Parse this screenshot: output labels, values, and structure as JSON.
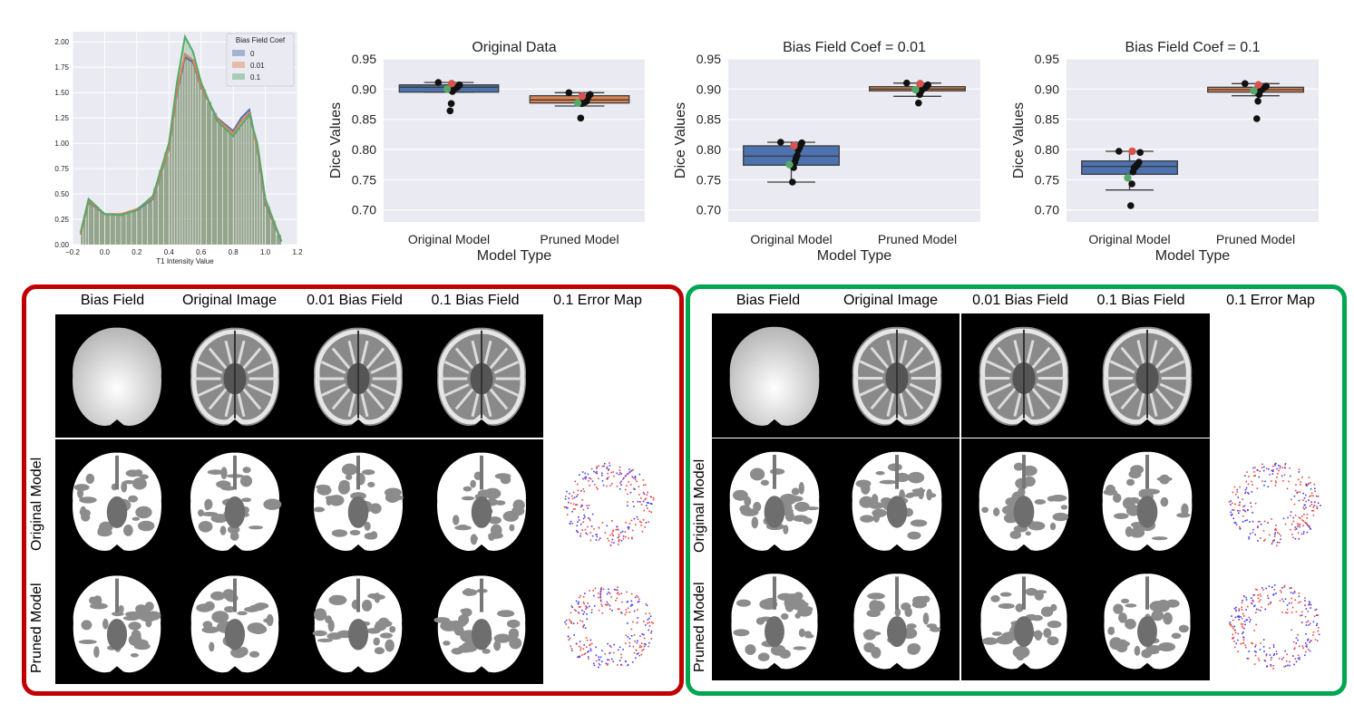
{
  "histogram": {
    "xlabel": "T1 Intensity Value",
    "legend_title": "Bias Field Coef",
    "xticks": [
      "−0.2",
      "0.0",
      "0.2",
      "0.4",
      "0.6",
      "0.8",
      "1.0",
      "1.2"
    ],
    "yticks": [
      "0.00",
      "0.25",
      "0.50",
      "0.75",
      "1.00",
      "1.25",
      "1.50",
      "1.75",
      "2.00"
    ]
  },
  "colors": {
    "c0": "#4c72b0",
    "c001": "#dd8452",
    "c01": "#55a868",
    "red_panel": "#c00000",
    "green_panel": "#00a651",
    "point_black": "#111111",
    "point_red": "#d9534f",
    "point_green": "#55a868"
  },
  "chart_data": [
    {
      "type": "histogram",
      "xlabel": "T1 Intensity Value",
      "xlim": [
        -0.2,
        1.2
      ],
      "ylim": [
        0,
        2.1
      ],
      "legend_title": "Bias Field Coef",
      "legend_position": "top-right",
      "series": [
        {
          "name": "0",
          "x": [
            -0.15,
            -0.1,
            0.0,
            0.1,
            0.2,
            0.3,
            0.4,
            0.45,
            0.5,
            0.55,
            0.6,
            0.7,
            0.8,
            0.85,
            0.9,
            0.95,
            1.0,
            1.1
          ],
          "y": [
            0.1,
            0.42,
            0.3,
            0.3,
            0.34,
            0.45,
            0.95,
            1.5,
            1.85,
            1.8,
            1.55,
            1.25,
            1.12,
            1.25,
            1.33,
            0.95,
            0.4,
            0.03
          ]
        },
        {
          "name": "0.01",
          "x": [
            -0.15,
            -0.1,
            0.0,
            0.1,
            0.2,
            0.3,
            0.4,
            0.45,
            0.5,
            0.55,
            0.6,
            0.7,
            0.8,
            0.85,
            0.9,
            0.95,
            1.0,
            1.1
          ],
          "y": [
            0.1,
            0.43,
            0.3,
            0.3,
            0.35,
            0.46,
            0.96,
            1.52,
            1.88,
            1.82,
            1.56,
            1.24,
            1.1,
            1.22,
            1.3,
            0.96,
            0.42,
            0.03
          ]
        },
        {
          "name": "0.1",
          "x": [
            -0.15,
            -0.1,
            0.0,
            0.1,
            0.2,
            0.3,
            0.4,
            0.45,
            0.5,
            0.55,
            0.6,
            0.7,
            0.8,
            0.85,
            0.9,
            0.95,
            1.0,
            1.1
          ],
          "y": [
            0.12,
            0.45,
            0.3,
            0.29,
            0.34,
            0.48,
            1.0,
            1.6,
            2.05,
            1.9,
            1.6,
            1.22,
            1.07,
            1.18,
            1.28,
            1.0,
            0.45,
            0.03
          ]
        }
      ]
    },
    {
      "type": "box",
      "title": "Original Data",
      "ylabel": "Dice Values",
      "xlabel": "Model Type",
      "ylim": [
        0.68,
        0.95
      ],
      "yticks": [
        "0.70",
        "0.75",
        "0.80",
        "0.85",
        "0.90",
        "0.95"
      ],
      "categories": [
        "Original Model",
        "Pruned Model"
      ],
      "boxes": [
        {
          "q1": 0.895,
          "median": 0.903,
          "q3": 0.907,
          "whislo": 0.895,
          "whishi": 0.911,
          "points": [
            0.911,
            0.907,
            0.905,
            0.903,
            0.903,
            0.901,
            0.9,
            0.896,
            0.876,
            0.864
          ],
          "red": 0.909,
          "green": 0.9
        },
        {
          "q1": 0.877,
          "median": 0.882,
          "q3": 0.889,
          "whislo": 0.872,
          "whishi": 0.894,
          "points": [
            0.894,
            0.891,
            0.889,
            0.886,
            0.88,
            0.879,
            0.878,
            0.877,
            0.876,
            0.852
          ],
          "red": 0.888,
          "green": 0.877
        }
      ]
    },
    {
      "type": "box",
      "title": "Bias Field Coef = 0.01",
      "ylabel": "Dice Values",
      "xlabel": "Model Type",
      "ylim": [
        0.68,
        0.95
      ],
      "yticks": [
        "0.70",
        "0.75",
        "0.80",
        "0.85",
        "0.90",
        "0.95"
      ],
      "categories": [
        "Original Model",
        "Pruned Model"
      ],
      "boxes": [
        {
          "q1": 0.774,
          "median": 0.789,
          "q3": 0.806,
          "whislo": 0.746,
          "whishi": 0.812,
          "points": [
            0.812,
            0.811,
            0.808,
            0.803,
            0.799,
            0.79,
            0.785,
            0.779,
            0.77,
            0.746
          ],
          "red": 0.806,
          "green": 0.775
        },
        {
          "q1": 0.897,
          "median": 0.9,
          "q3": 0.904,
          "whislo": 0.888,
          "whishi": 0.91,
          "points": [
            0.91,
            0.907,
            0.905,
            0.903,
            0.902,
            0.901,
            0.899,
            0.896,
            0.891,
            0.877
          ],
          "red": 0.909,
          "green": 0.899
        }
      ]
    },
    {
      "type": "box",
      "title": "Bias Field Coef = 0.1",
      "ylabel": "Dice Values",
      "xlabel": "Model Type",
      "ylim": [
        0.68,
        0.95
      ],
      "yticks": [
        "0.70",
        "0.75",
        "0.80",
        "0.85",
        "0.90",
        "0.95"
      ],
      "categories": [
        "Original Model",
        "Pruned Model"
      ],
      "boxes": [
        {
          "q1": 0.759,
          "median": 0.772,
          "q3": 0.781,
          "whislo": 0.733,
          "whishi": 0.797,
          "points": [
            0.797,
            0.795,
            0.779,
            0.775,
            0.774,
            0.771,
            0.77,
            0.763,
            0.743,
            0.707
          ],
          "red": 0.797,
          "green": 0.753
        },
        {
          "q1": 0.895,
          "median": 0.899,
          "q3": 0.903,
          "whislo": 0.889,
          "whishi": 0.909,
          "points": [
            0.909,
            0.905,
            0.903,
            0.902,
            0.901,
            0.899,
            0.897,
            0.891,
            0.88,
            0.851
          ],
          "red": 0.907,
          "green": 0.897
        }
      ]
    }
  ],
  "panels": {
    "columns": [
      "Bias Field",
      "Original Image",
      "0.01 Bias Field",
      "0.1 Bias Field",
      "0.1 Error Map"
    ],
    "rows": [
      "Original Model",
      "Pruned Model"
    ]
  }
}
